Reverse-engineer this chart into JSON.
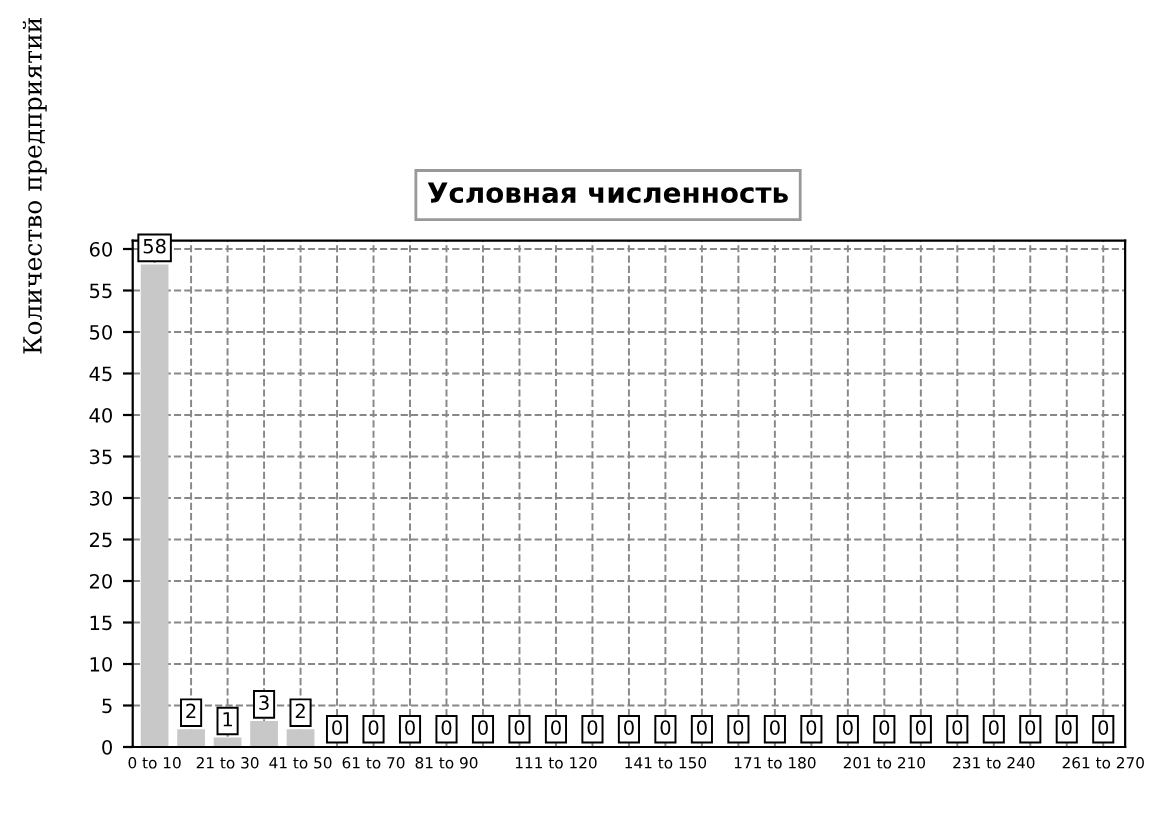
{
  "chart_data": {
    "type": "bar",
    "title": "Условная численность",
    "ylabel": "Количество предприятий",
    "categories": [
      "0 to 10",
      null,
      "21 to 30",
      null,
      "41 to 50",
      null,
      "61 to 70",
      null,
      "81 to 90",
      null,
      null,
      "111 to 120",
      null,
      null,
      "141 to 150",
      null,
      null,
      "171 to 180",
      null,
      null,
      "201 to 210",
      null,
      null,
      "231 to 240",
      null,
      null,
      "261 to 270"
    ],
    "values": [
      58,
      2,
      1,
      3,
      2,
      0,
      0,
      0,
      0,
      0,
      0,
      0,
      0,
      0,
      0,
      0,
      0,
      0,
      0,
      0,
      0,
      0,
      0,
      0,
      0,
      0,
      0
    ],
    "color": "#c8c8c8",
    "ylim": [
      0,
      61
    ],
    "yticks": [
      0,
      5,
      10,
      15,
      20,
      25,
      30,
      35,
      40,
      45,
      50,
      55,
      60
    ],
    "grid": true,
    "data_labels": true
  }
}
